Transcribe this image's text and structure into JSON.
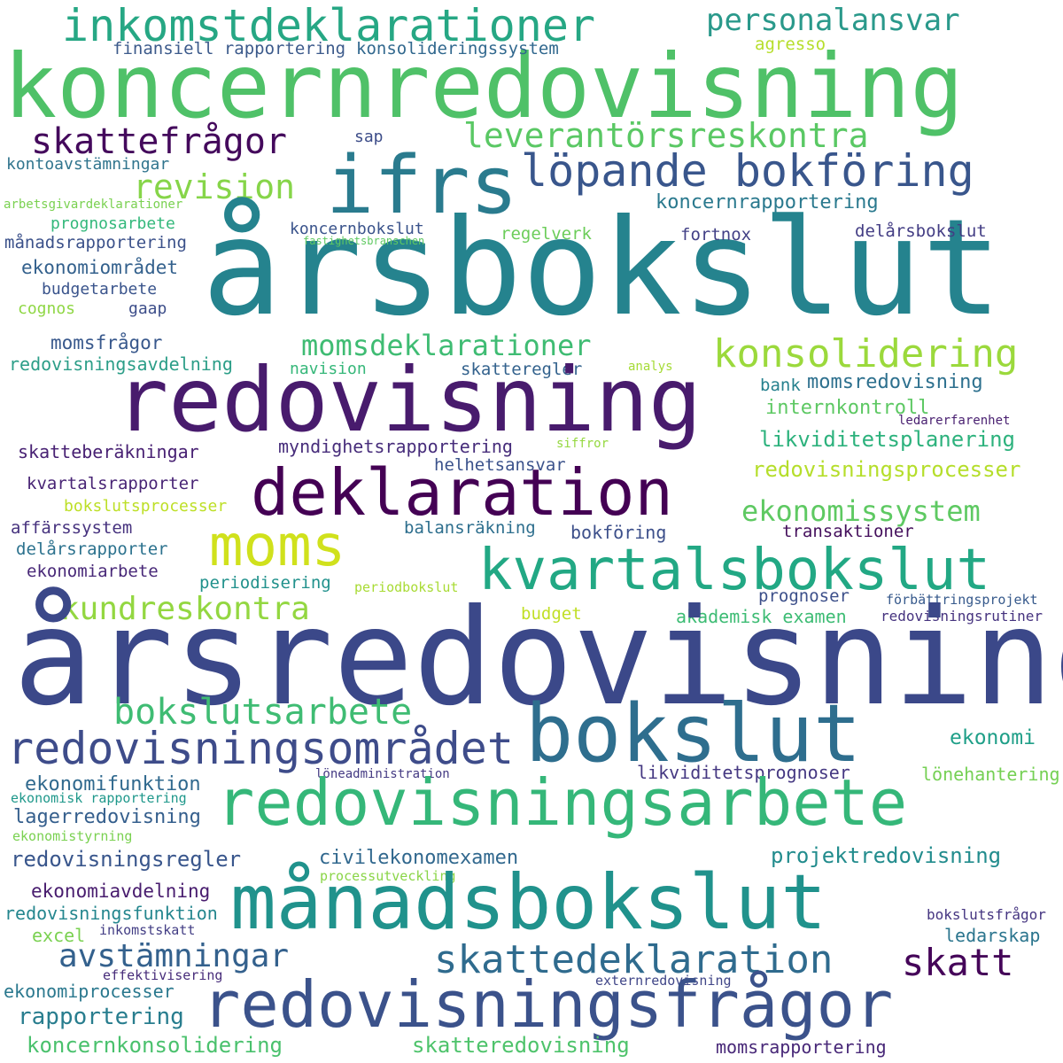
{
  "words": [
    {
      "text": "inkomstdeklarationer",
      "color": "#26a784"
    },
    {
      "text": "personalansvar",
      "color": "#2a998b"
    },
    {
      "text": "koncernredovisning",
      "color": "#4fc168"
    },
    {
      "text": "finansiell rapportering",
      "color": "#3c5a8b"
    },
    {
      "text": "konsolideringssystem",
      "color": "#31688e"
    },
    {
      "text": "agresso",
      "color": "#b6de2b"
    },
    {
      "text": "skattefrågor",
      "color": "#44095c"
    },
    {
      "text": "leverantörsreskontra",
      "color": "#5ac864"
    },
    {
      "text": "sap",
      "color": "#3d4d89"
    },
    {
      "text": "ifrs",
      "color": "#2a7b8e"
    },
    {
      "text": "löpande bokföring",
      "color": "#39568c"
    },
    {
      "text": "kontoavstämningar",
      "color": "#31758e"
    },
    {
      "text": "revision",
      "color": "#86d549"
    },
    {
      "text": "arbetsgivardeklarationer",
      "color": "#7ad151"
    },
    {
      "text": "koncernrapportering",
      "color": "#2a798e"
    },
    {
      "text": "prognosarbete",
      "color": "#33b87b"
    },
    {
      "text": "årsbokslut",
      "color": "#25838e"
    },
    {
      "text": "koncernbokslut",
      "color": "#3a538b"
    },
    {
      "text": "fastighetsbranschen",
      "color": "#5fc961"
    },
    {
      "text": "regelverk",
      "color": "#6ccd5a"
    },
    {
      "text": "fortnox",
      "color": "#424086"
    },
    {
      "text": "delårsbokslut",
      "color": "#433d84"
    },
    {
      "text": "månadsrapportering",
      "color": "#3b518a"
    },
    {
      "text": "ekonomiområdet",
      "color": "#34618d"
    },
    {
      "text": "budgetarbete",
      "color": "#3a548c"
    },
    {
      "text": "cognos",
      "color": "#8fd744"
    },
    {
      "text": "gaap",
      "color": "#3d4e8a"
    },
    {
      "text": "momsdeklarationer",
      "color": "#3fbc73"
    },
    {
      "text": "momsfrågor",
      "color": "#38588c"
    },
    {
      "text": "konsolidering",
      "color": "#9bd93c"
    },
    {
      "text": "redovisningsavdelning",
      "color": "#2c9e88"
    },
    {
      "text": "navision",
      "color": "#35b779"
    },
    {
      "text": "skatteregler",
      "color": "#33628d"
    },
    {
      "text": "analys",
      "color": "#a5db36"
    },
    {
      "text": "redovisning",
      "color": "#481b6d"
    },
    {
      "text": "bank",
      "color": "#26818e"
    },
    {
      "text": "momsredovisning",
      "color": "#2d708e"
    },
    {
      "text": "internkontroll",
      "color": "#5dc863"
    },
    {
      "text": "ledarerfarenhet",
      "color": "#481f70"
    },
    {
      "text": "siffror",
      "color": "#95d840"
    },
    {
      "text": "likviditetsplanering",
      "color": "#2db27d"
    },
    {
      "text": "skatteberäkningar",
      "color": "#482173"
    },
    {
      "text": "myndighetsrapportering",
      "color": "#472d7b"
    },
    {
      "text": "redovisningsprocesser",
      "color": "#b5de2b"
    },
    {
      "text": "helhetsansvar",
      "color": "#3b528b"
    },
    {
      "text": "deklaration",
      "color": "#440154"
    },
    {
      "text": "kvartalsrapporter",
      "color": "#482475"
    },
    {
      "text": "ekonomissystem",
      "color": "#5ec962"
    },
    {
      "text": "bokslutsprocesser",
      "color": "#bddf26"
    },
    {
      "text": "moms",
      "color": "#d0e11c"
    },
    {
      "text": "affärssystem",
      "color": "#46327e"
    },
    {
      "text": "balansräkning",
      "color": "#2e6f8e"
    },
    {
      "text": "bokföring",
      "color": "#3c4f8a"
    },
    {
      "text": "transaktioner",
      "color": "#440f5c"
    },
    {
      "text": "delårsrapporter",
      "color": "#2c728e"
    },
    {
      "text": "kvartalsbokslut",
      "color": "#22a884"
    },
    {
      "text": "ekonomiarbete",
      "color": "#482878"
    },
    {
      "text": "periodisering",
      "color": "#21918c"
    },
    {
      "text": "periodbokslut",
      "color": "#a8db34"
    },
    {
      "text": "kundreskontra",
      "color": "#93d741"
    },
    {
      "text": "prognoser",
      "color": "#3c4f8a"
    },
    {
      "text": "förbättringsprojekt",
      "color": "#375a8c"
    },
    {
      "text": "budget",
      "color": "#c0df25"
    },
    {
      "text": "akademisk examen",
      "color": "#3dbc74"
    },
    {
      "text": "redovisningsrutiner",
      "color": "#46337f"
    },
    {
      "text": "årsredovisning",
      "color": "#3b4889"
    },
    {
      "text": "bokslutsarbete",
      "color": "#3fbc73"
    },
    {
      "text": "bokslut",
      "color": "#2e6e8e"
    },
    {
      "text": "redovisningsområdet",
      "color": "#3e4c8a"
    },
    {
      "text": "ekonomi",
      "color": "#1f9f88"
    },
    {
      "text": "ekonomifunktion",
      "color": "#30698e"
    },
    {
      "text": "löneadministration",
      "color": "#443a83"
    },
    {
      "text": "likviditetsprognoser",
      "color": "#453882"
    },
    {
      "text": "lönehantering",
      "color": "#75d054"
    },
    {
      "text": "ekonomisk rapportering",
      "color": "#1f988b"
    },
    {
      "text": "redovisningsarbete",
      "color": "#35b779"
    },
    {
      "text": "lagerredovisning",
      "color": "#355f8d"
    },
    {
      "text": "ekonomistyrning",
      "color": "#7ad151"
    },
    {
      "text": "redovisningsregler",
      "color": "#39568c"
    },
    {
      "text": "civilekonomexamen",
      "color": "#31688e"
    },
    {
      "text": "projektredovisning",
      "color": "#228c8d"
    },
    {
      "text": "processutveckling",
      "color": "#8ad547"
    },
    {
      "text": "ekonomiavdelning",
      "color": "#481c6e"
    },
    {
      "text": "månadsbokslut",
      "color": "#20928c"
    },
    {
      "text": "redovisningsfunktion",
      "color": "#24868e"
    },
    {
      "text": "bokslutsfrågor",
      "color": "#453581"
    },
    {
      "text": "excel",
      "color": "#7ad151"
    },
    {
      "text": "inkomstskatt",
      "color": "#433e85"
    },
    {
      "text": "ledarskap",
      "color": "#2b758e"
    },
    {
      "text": "avstämningar",
      "color": "#34618d"
    },
    {
      "text": "skattedeklaration",
      "color": "#2f6b8e"
    },
    {
      "text": "skatt",
      "color": "#450559"
    },
    {
      "text": "effektivisering",
      "color": "#472c7a"
    },
    {
      "text": "externredovisning",
      "color": "#404688"
    },
    {
      "text": "ekonomiprocesser",
      "color": "#2a788e"
    },
    {
      "text": "redovisningsfrågor",
      "color": "#3b528b"
    },
    {
      "text": "rapportering",
      "color": "#287d8e"
    },
    {
      "text": "koncernkonsolidering",
      "color": "#4ac16d"
    },
    {
      "text": "skatteredovisning",
      "color": "#4ec36b"
    },
    {
      "text": "momsrapportering",
      "color": "#482878"
    }
  ]
}
